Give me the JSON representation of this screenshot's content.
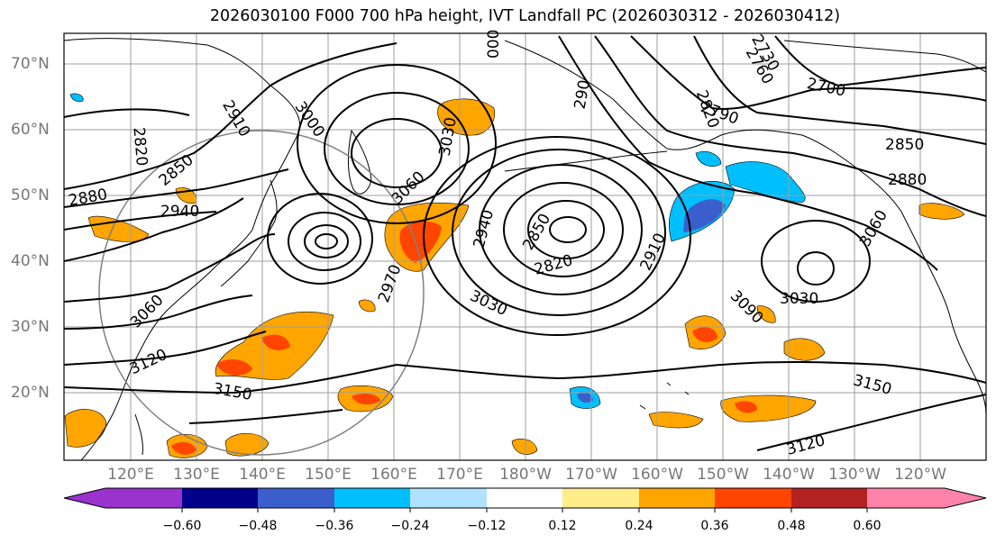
{
  "title": "2026030100 F000 700 hPa height, IVT Landfall PC (2026030312 - 2026030412)",
  "lat_labels": [
    "70°N",
    "60°N",
    "50°N",
    "40°N",
    "30°N",
    "20°N"
  ],
  "lon_labels": [
    "120°E",
    "130°E",
    "140°E",
    "150°E",
    "160°E",
    "170°E",
    "180°W",
    "170°W",
    "160°W",
    "150°W",
    "140°W",
    "130°W",
    "120°W"
  ],
  "contour_labels": [
    "2820",
    "2910",
    "3000",
    "000",
    "2730",
    "2700",
    "2820",
    "2760",
    "2790",
    "2850",
    "2850",
    "2880",
    "2940",
    "3030",
    "3060",
    "2940",
    "2850",
    "2820",
    "2910",
    "3060",
    "3030",
    "3090",
    "2970",
    "3060",
    "3030",
    "3120",
    "3150",
    "3150",
    "3120",
    "2880",
    "2850",
    "290"
  ],
  "colorbar": {
    "ticks": [
      "−0.60",
      "−0.48",
      "−0.36",
      "−0.24",
      "−0.12",
      "0.12",
      "0.24",
      "0.36",
      "0.48",
      "0.60"
    ],
    "colors": [
      "#9a32cd",
      "#00008b",
      "#3a5fcd",
      "#00bfff",
      "#b0e2ff",
      "#ffffff",
      "#ffec8b",
      "#ffa500",
      "#ff4500",
      "#b22222",
      "#ff82ab"
    ]
  },
  "colors": {
    "contour": "#000000",
    "grid": "#9e9e9e",
    "coast": "#000000",
    "circle": "#808080",
    "axis_label": "#777777"
  }
}
